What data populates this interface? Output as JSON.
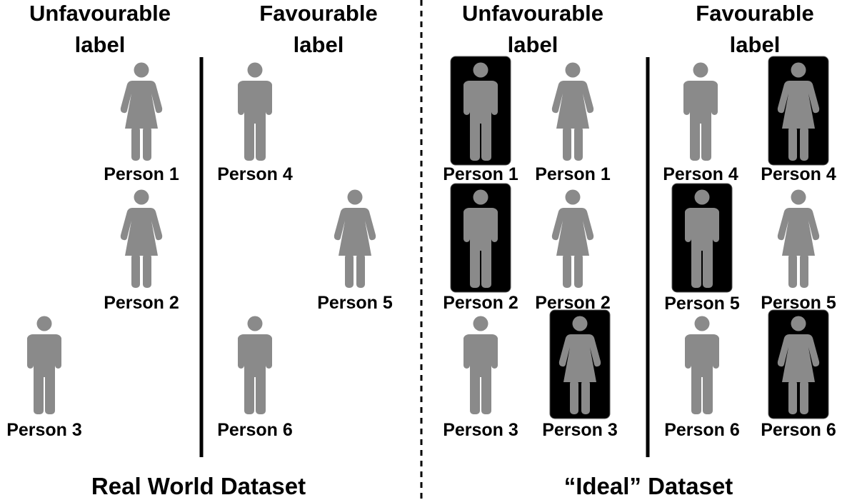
{
  "colors": {
    "figure": "#8a8a8a",
    "highlight_box": "#000000",
    "divider": "#000000",
    "text": "#000000"
  },
  "panels": [
    {
      "caption": "Real World Dataset",
      "columns": [
        {
          "header_line1": "Unfavourable",
          "header_line2": "label"
        },
        {
          "header_line1": "Favourable",
          "header_line2": "label"
        }
      ],
      "people": [
        {
          "label": "Person 1",
          "icon": "female-person-icon",
          "column": "unfavourable",
          "highlighted": false
        },
        {
          "label": "Person 2",
          "icon": "female-person-icon",
          "column": "unfavourable",
          "highlighted": false
        },
        {
          "label": "Person 3",
          "icon": "male-person-icon",
          "column": "unfavourable",
          "highlighted": false
        },
        {
          "label": "Person 4",
          "icon": "male-person-icon",
          "column": "favourable",
          "highlighted": false
        },
        {
          "label": "Person 5",
          "icon": "female-person-icon",
          "column": "favourable",
          "highlighted": false
        },
        {
          "label": "Person 6",
          "icon": "male-person-icon",
          "column": "favourable",
          "highlighted": false
        }
      ]
    },
    {
      "caption": "“Ideal” Dataset",
      "columns": [
        {
          "header_line1": "Unfavourable",
          "header_line2": "label"
        },
        {
          "header_line1": "Favourable",
          "header_line2": "label"
        }
      ],
      "people": [
        {
          "label": "Person 1",
          "icon": "male-person-icon",
          "column": "unfavourable",
          "highlighted": true
        },
        {
          "label": "Person 1",
          "icon": "female-person-icon",
          "column": "unfavourable",
          "highlighted": false
        },
        {
          "label": "Person 2",
          "icon": "male-person-icon",
          "column": "unfavourable",
          "highlighted": true
        },
        {
          "label": "Person 2",
          "icon": "female-person-icon",
          "column": "unfavourable",
          "highlighted": false
        },
        {
          "label": "Person 3",
          "icon": "male-person-icon",
          "column": "unfavourable",
          "highlighted": false
        },
        {
          "label": "Person 3",
          "icon": "female-person-icon",
          "column": "unfavourable",
          "highlighted": true
        },
        {
          "label": "Person 4",
          "icon": "male-person-icon",
          "column": "favourable",
          "highlighted": false
        },
        {
          "label": "Person 4",
          "icon": "female-person-icon",
          "column": "favourable",
          "highlighted": true
        },
        {
          "label": "Person 5",
          "icon": "male-person-icon",
          "column": "favourable",
          "highlighted": true
        },
        {
          "label": "Person 5",
          "icon": "female-person-icon",
          "column": "favourable",
          "highlighted": false
        },
        {
          "label": "Person 6",
          "icon": "male-person-icon",
          "column": "favourable",
          "highlighted": false
        },
        {
          "label": "Person 6",
          "icon": "female-person-icon",
          "column": "favourable",
          "highlighted": true
        }
      ]
    }
  ]
}
